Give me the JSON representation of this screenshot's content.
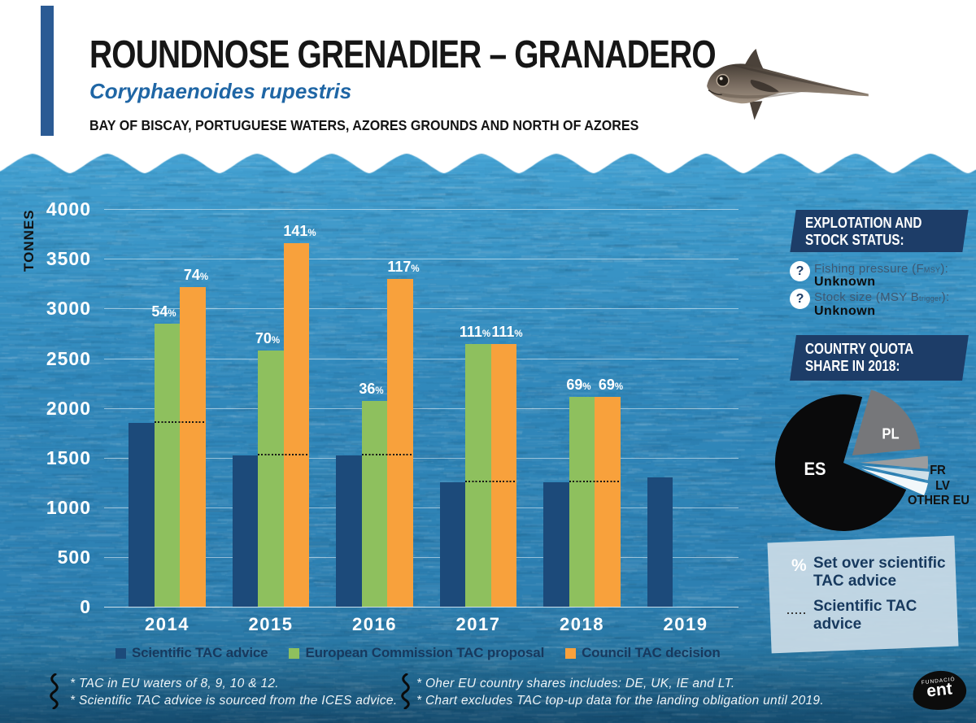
{
  "header": {
    "title": "ROUNDNOSE GRENADIER – GRANADERO",
    "species": "Coryphaenoides rupestris",
    "region": "BAY OF BISCAY, PORTUGUESE WATERS, AZORES GROUNDS AND NORTH OF AZORES"
  },
  "chart_data": [
    {
      "type": "bar",
      "title": "TAC and scientific advice by year",
      "ylabel": "TONNES",
      "ylim": [
        0,
        4000
      ],
      "yticks": [
        0,
        500,
        1000,
        1500,
        2000,
        2500,
        3000,
        3500,
        4000
      ],
      "grid": true,
      "categories": [
        "2014",
        "2015",
        "2016",
        "2017",
        "2018",
        "2019"
      ],
      "series": [
        {
          "name": "Scientific TAC advice",
          "color": "#1c4a7a",
          "values": [
            1850,
            1520,
            1520,
            1250,
            1250,
            1300
          ]
        },
        {
          "name": "European Commission TAC proposal",
          "color": "#8ec05e",
          "values": [
            2850,
            2580,
            2070,
            2640,
            2110,
            null
          ],
          "pct_over_advice": [
            54,
            70,
            36,
            111,
            69,
            null
          ]
        },
        {
          "name": "Council TAC decision",
          "color": "#f8a13c",
          "values": [
            3220,
            3660,
            3300,
            2640,
            2110,
            null
          ],
          "pct_over_advice": [
            74,
            141,
            117,
            111,
            69,
            null
          ]
        }
      ],
      "advice_line_note": "dotted line marks scientific TAC advice level"
    },
    {
      "type": "pie",
      "title": "COUNTRY QUOTA SHARE IN 2018:",
      "slices": [
        {
          "label": "ES",
          "value": 73,
          "color": "#0a0a0b"
        },
        {
          "label": "PL",
          "value": 19,
          "color": "#76777a"
        },
        {
          "label": "FR",
          "value": 3,
          "color": "#9a9c9e"
        },
        {
          "label": "LV",
          "value": 2,
          "color": "#cfe0e8"
        },
        {
          "label": "OTHER EU",
          "value": 3,
          "color": "#f2f8fa"
        }
      ]
    }
  ],
  "axis_unit": "TONNES",
  "status_panel": {
    "title_lines": [
      "EXPLOTATION AND",
      "STOCK STATUS:"
    ],
    "items": [
      {
        "icon": "?",
        "pre": "Fishing pressure (F",
        "sub": "MSY",
        "post": "):",
        "value": "Unknown"
      },
      {
        "icon": "?",
        "pre": "Stock size (MSY B",
        "sub": "trigger",
        "post": "):",
        "value": "Unknown"
      }
    ]
  },
  "pie_panel": {
    "title_lines": [
      "COUNTRY QUOTA",
      "SHARE IN 2018:"
    ]
  },
  "key": {
    "items": [
      {
        "icon": "%",
        "lines": [
          "Set over scientific",
          "TAC advice"
        ]
      },
      {
        "icon": "dotted",
        "lines": [
          "Scientific TAC",
          "advice"
        ]
      }
    ]
  },
  "footnotes": {
    "group1": [
      "* TAC in EU waters of 8, 9, 10 & 12.",
      "* Scientific TAC advice is sourced from the ICES advice."
    ],
    "group2": [
      "* Oher EU country shares includes: DE, UK, IE and LT.",
      "* Chart excludes TAC top-up data for the landing obligation until 2019."
    ]
  },
  "logo": {
    "top": "FUNDACIÓ",
    "name": "ent"
  }
}
